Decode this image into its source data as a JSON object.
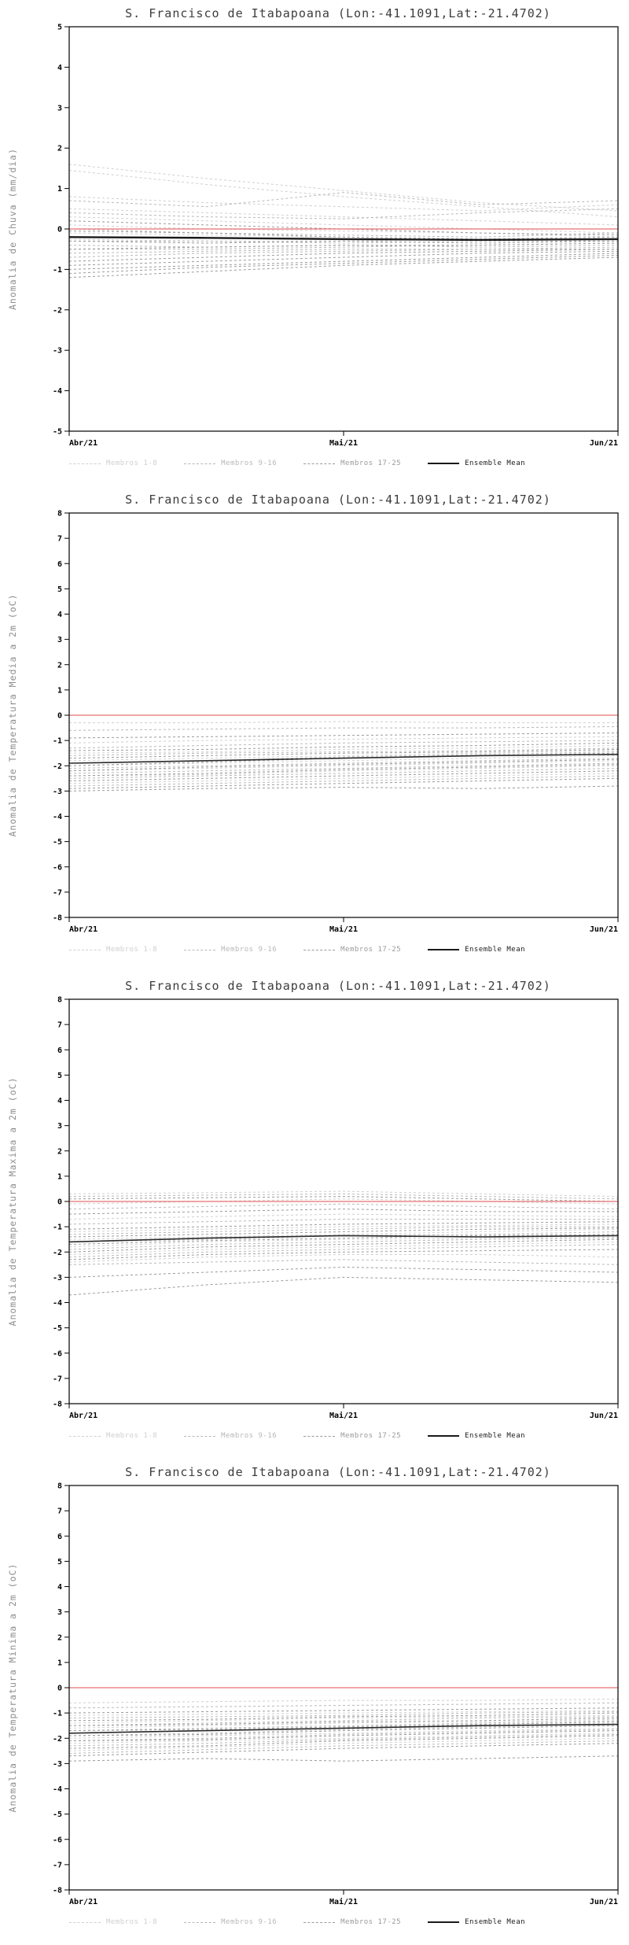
{
  "legend": {
    "items": [
      {
        "label": "Membros 1-8",
        "style": "dashed",
        "color": "#cfcfcf"
      },
      {
        "label": "Membros 9-16",
        "style": "dashed",
        "color": "#b8b8b8"
      },
      {
        "label": "Membros 17-25",
        "style": "dashed",
        "color": "#9a9a9a"
      },
      {
        "label": "Ensemble Mean",
        "style": "solid",
        "color": "#1a1a1a"
      }
    ]
  },
  "chart_data": [
    {
      "type": "line",
      "title": "S. Francisco de Itabapoana (Lon:-41.1091,Lat:-21.4702)",
      "ylabel": "Anomalia de Chuva (mm/dia)",
      "ylim": [
        -5,
        5
      ],
      "ytick_step": 1,
      "x_labels": [
        "Abr/21",
        "Mai/21",
        "Jun/21"
      ],
      "grid": false,
      "legend_position": "bottom",
      "zero_line_color": "#e87272",
      "mean_color": "#1a1a1a",
      "mean_width": 2.4,
      "members_1_8": [
        [
          1.6,
          1.25,
          0.95,
          0.65,
          0.45
        ],
        [
          1.45,
          1.1,
          0.8,
          0.55,
          0.3
        ],
        [
          0.8,
          0.65,
          0.55,
          0.45,
          0.6
        ],
        [
          0.5,
          0.4,
          0.3,
          0.2,
          0.1
        ],
        [
          0.3,
          0.2,
          0.1,
          0.0,
          -0.1
        ],
        [
          0.1,
          0.0,
          -0.05,
          -0.1,
          -0.2
        ],
        [
          -0.1,
          -0.15,
          -0.2,
          -0.25,
          -0.3
        ],
        [
          -0.25,
          -0.3,
          -0.3,
          -0.25,
          -0.2
        ]
      ],
      "members_9_16": [
        [
          0.7,
          0.55,
          0.9,
          0.6,
          0.7
        ],
        [
          0.4,
          0.3,
          0.25,
          0.4,
          0.5
        ],
        [
          0.0,
          -0.1,
          -0.15,
          -0.2,
          -0.1
        ],
        [
          -0.3,
          -0.3,
          -0.35,
          -0.3,
          -0.3
        ],
        [
          -0.4,
          -0.45,
          -0.4,
          -0.45,
          -0.4
        ],
        [
          -0.5,
          -0.5,
          -0.45,
          -0.4,
          -0.35
        ],
        [
          -0.6,
          -0.55,
          -0.5,
          -0.5,
          -0.45
        ],
        [
          -0.7,
          -0.6,
          -0.55,
          -0.5,
          -0.5
        ]
      ],
      "members_17_25": [
        [
          0.2,
          0.1,
          0.0,
          -0.1,
          -0.15
        ],
        [
          -0.05,
          -0.1,
          -0.2,
          -0.25,
          -0.2
        ],
        [
          -0.3,
          -0.35,
          -0.3,
          -0.35,
          -0.3
        ],
        [
          -0.5,
          -0.45,
          -0.4,
          -0.4,
          -0.35
        ],
        [
          -0.8,
          -0.7,
          -0.6,
          -0.55,
          -0.5
        ],
        [
          -0.9,
          -0.8,
          -0.7,
          -0.6,
          -0.55
        ],
        [
          -1.0,
          -0.9,
          -0.8,
          -0.7,
          -0.6
        ],
        [
          -1.1,
          -0.95,
          -0.85,
          -0.75,
          -0.65
        ],
        [
          -1.2,
          -1.05,
          -0.9,
          -0.8,
          -0.7
        ]
      ],
      "ensemble_mean": [
        -0.2,
        -0.22,
        -0.25,
        -0.27,
        -0.25
      ]
    },
    {
      "type": "line",
      "title": "S. Francisco de Itabapoana (Lon:-41.1091,Lat:-21.4702)",
      "ylabel": "Anomalia de Temperatura Media a 2m (oC)",
      "ylim": [
        -8,
        8
      ],
      "ytick_step": 1,
      "x_labels": [
        "Abr/21",
        "Mai/21",
        "Jun/21"
      ],
      "grid": false,
      "legend_position": "bottom",
      "zero_line_color": "#e87272",
      "mean_color": "#2a2a2a",
      "mean_width": 1.6,
      "members_1_8": [
        [
          -0.3,
          -0.3,
          -0.25,
          -0.3,
          -0.3
        ],
        [
          -1.1,
          -1.0,
          -0.95,
          -0.9,
          -0.85
        ],
        [
          -1.5,
          -1.45,
          -1.35,
          -1.3,
          -1.2
        ],
        [
          -1.8,
          -1.7,
          -1.6,
          -1.5,
          -1.4
        ],
        [
          -2.0,
          -1.9,
          -1.8,
          -1.7,
          -1.6
        ],
        [
          -2.2,
          -2.1,
          -2.0,
          -1.9,
          -1.8
        ],
        [
          -2.4,
          -2.35,
          -2.2,
          -2.1,
          -2.0
        ],
        [
          -2.7,
          -2.6,
          -2.5,
          -2.4,
          -2.3
        ]
      ],
      "members_9_16": [
        [
          -0.6,
          -0.55,
          -0.5,
          -0.5,
          -0.45
        ],
        [
          -1.3,
          -1.2,
          -1.1,
          -1.05,
          -1.0
        ],
        [
          -1.6,
          -1.5,
          -1.45,
          -1.4,
          -1.3
        ],
        [
          -1.9,
          -1.8,
          -1.65,
          -1.55,
          -1.45
        ],
        [
          -2.1,
          -2.0,
          -1.9,
          -1.8,
          -1.7
        ],
        [
          -2.3,
          -2.2,
          -2.1,
          -2.0,
          -1.9
        ],
        [
          -2.5,
          -2.4,
          -2.3,
          -2.2,
          -2.1
        ],
        [
          -2.8,
          -2.7,
          -2.6,
          -2.5,
          -2.4
        ]
      ],
      "members_17_25": [
        [
          -0.9,
          -0.85,
          -0.8,
          -0.75,
          -0.7
        ],
        [
          -1.4,
          -1.35,
          -1.25,
          -1.2,
          -1.1
        ],
        [
          -1.7,
          -1.6,
          -1.5,
          -1.45,
          -1.35
        ],
        [
          -2.0,
          -1.85,
          -1.7,
          -1.6,
          -1.5
        ],
        [
          -2.2,
          -2.05,
          -1.95,
          -1.85,
          -1.75
        ],
        [
          -2.4,
          -2.3,
          -2.15,
          -2.05,
          -1.95
        ],
        [
          -2.6,
          -2.5,
          -2.4,
          -2.3,
          -2.2
        ],
        [
          -2.9,
          -2.8,
          -2.7,
          -2.6,
          -2.5
        ],
        [
          -3.0,
          -2.9,
          -2.85,
          -2.9,
          -2.8
        ]
      ],
      "ensemble_mean": [
        -1.9,
        -1.8,
        -1.7,
        -1.6,
        -1.55
      ]
    },
    {
      "type": "line",
      "title": "S. Francisco de Itabapoana (Lon:-41.1091,Lat:-21.4702)",
      "ylabel": "Anomalia de Temperatura Maxima a 2m (oC)",
      "ylim": [
        -8,
        8
      ],
      "ytick_step": 1,
      "x_labels": [
        "Abr/21",
        "Mai/21",
        "Jun/21"
      ],
      "grid": false,
      "legend_position": "bottom",
      "zero_line_color": "#e87272",
      "mean_color": "#2a2a2a",
      "mean_width": 1.6,
      "members_1_8": [
        [
          0.3,
          0.35,
          0.4,
          0.3,
          0.2
        ],
        [
          -0.1,
          0.0,
          0.1,
          0.0,
          -0.1
        ],
        [
          -0.7,
          -0.6,
          -0.5,
          -0.55,
          -0.6
        ],
        [
          -1.2,
          -1.1,
          -1.0,
          -0.95,
          -0.9
        ],
        [
          -1.5,
          -1.4,
          -1.3,
          -1.2,
          -1.1
        ],
        [
          -1.8,
          -1.6,
          -1.5,
          -1.45,
          -1.4
        ],
        [
          -2.1,
          -1.9,
          -1.8,
          -1.7,
          -1.6
        ],
        [
          -2.4,
          -2.2,
          -2.1,
          -2.1,
          -2.2
        ]
      ],
      "members_9_16": [
        [
          0.2,
          0.25,
          0.3,
          0.2,
          0.1
        ],
        [
          -0.3,
          -0.2,
          -0.1,
          -0.2,
          -0.3
        ],
        [
          -0.9,
          -0.8,
          -0.7,
          -0.7,
          -0.7
        ],
        [
          -1.3,
          -1.2,
          -1.1,
          -1.0,
          -1.0
        ],
        [
          -1.6,
          -1.5,
          -1.35,
          -1.3,
          -1.2
        ],
        [
          -1.9,
          -1.7,
          -1.6,
          -1.5,
          -1.45
        ],
        [
          -2.2,
          -2.0,
          -1.9,
          -1.8,
          -1.7
        ],
        [
          -2.5,
          -2.4,
          -2.3,
          -2.4,
          -2.5
        ]
      ],
      "members_17_25": [
        [
          0.1,
          0.15,
          0.2,
          0.1,
          0.0
        ],
        [
          -0.5,
          -0.4,
          -0.3,
          -0.4,
          -0.4
        ],
        [
          -1.1,
          -1.0,
          -0.9,
          -0.85,
          -0.8
        ],
        [
          -1.4,
          -1.3,
          -1.2,
          -1.1,
          -1.05
        ],
        [
          -1.7,
          -1.55,
          -1.45,
          -1.35,
          -1.3
        ],
        [
          -2.0,
          -1.8,
          -1.7,
          -1.6,
          -1.5
        ],
        [
          -2.3,
          -2.1,
          -2.0,
          -1.95,
          -1.9
        ],
        [
          -3.0,
          -2.8,
          -2.6,
          -2.7,
          -2.8
        ],
        [
          -3.7,
          -3.3,
          -3.0,
          -3.1,
          -3.2
        ]
      ],
      "ensemble_mean": [
        -1.6,
        -1.45,
        -1.35,
        -1.4,
        -1.35
      ]
    },
    {
      "type": "line",
      "title": "S. Francisco de Itabapoana (Lon:-41.1091,Lat:-21.4702)",
      "ylabel": "Anomalia de Temperatura Minima a 2m (oC)",
      "ylim": [
        -8,
        8
      ],
      "ytick_step": 1,
      "x_labels": [
        "Abr/21",
        "Mai/21",
        "Jun/21"
      ],
      "grid": false,
      "legend_position": "bottom",
      "zero_line_color": "#e87272",
      "mean_color": "#2a2a2a",
      "mean_width": 1.6,
      "members_1_8": [
        [
          -0.6,
          -0.55,
          -0.5,
          -0.5,
          -0.45
        ],
        [
          -1.1,
          -1.05,
          -1.0,
          -0.95,
          -0.9
        ],
        [
          -1.4,
          -1.3,
          -1.2,
          -1.15,
          -1.1
        ],
        [
          -1.6,
          -1.5,
          -1.4,
          -1.35,
          -1.25
        ],
        [
          -1.8,
          -1.7,
          -1.6,
          -1.5,
          -1.4
        ],
        [
          -2.0,
          -1.9,
          -1.8,
          -1.7,
          -1.6
        ],
        [
          -2.2,
          -2.1,
          -2.0,
          -1.9,
          -1.8
        ],
        [
          -2.5,
          -2.35,
          -2.2,
          -2.1,
          -2.0
        ]
      ],
      "members_9_16": [
        [
          -0.8,
          -0.75,
          -0.7,
          -0.65,
          -0.6
        ],
        [
          -1.2,
          -1.15,
          -1.1,
          -1.0,
          -0.95
        ],
        [
          -1.5,
          -1.4,
          -1.3,
          -1.2,
          -1.15
        ],
        [
          -1.7,
          -1.6,
          -1.5,
          -1.4,
          -1.3
        ],
        [
          -1.9,
          -1.8,
          -1.65,
          -1.55,
          -1.45
        ],
        [
          -2.1,
          -2.0,
          -1.85,
          -1.75,
          -1.65
        ],
        [
          -2.3,
          -2.2,
          -2.05,
          -1.95,
          -1.85
        ],
        [
          -2.6,
          -2.45,
          -2.3,
          -2.2,
          -2.1
        ]
      ],
      "members_17_25": [
        [
          -1.0,
          -0.95,
          -0.9,
          -0.85,
          -0.8
        ],
        [
          -1.3,
          -1.25,
          -1.15,
          -1.1,
          -1.0
        ],
        [
          -1.5,
          -1.45,
          -1.35,
          -1.3,
          -1.2
        ],
        [
          -1.7,
          -1.65,
          -1.55,
          -1.45,
          -1.35
        ],
        [
          -1.9,
          -1.85,
          -1.7,
          -1.6,
          -1.5
        ],
        [
          -2.1,
          -2.05,
          -1.9,
          -1.8,
          -1.7
        ],
        [
          -2.4,
          -2.3,
          -2.1,
          -2.0,
          -1.9
        ],
        [
          -2.7,
          -2.55,
          -2.4,
          -2.3,
          -2.2
        ],
        [
          -2.9,
          -2.8,
          -2.9,
          -2.8,
          -2.7
        ]
      ],
      "ensemble_mean": [
        -1.8,
        -1.7,
        -1.6,
        -1.5,
        -1.45
      ]
    }
  ]
}
